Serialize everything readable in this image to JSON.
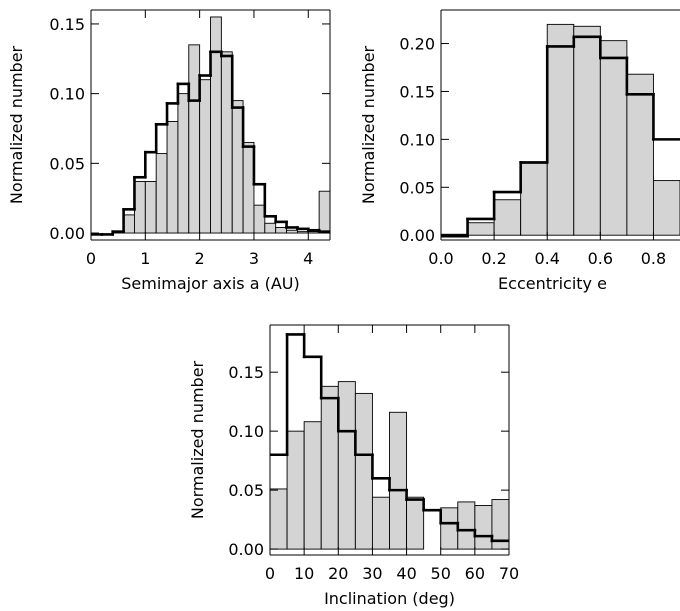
{
  "colors": {
    "fill": "#d4d4d4",
    "line": "#000000",
    "background": "#ffffff"
  },
  "chart_data": [
    {
      "type": "histogram",
      "id": "semimajor",
      "xlabel": "Semimajor axis a (AU)",
      "ylabel": "Normalized number",
      "xlim": [
        0,
        4.4
      ],
      "ylim": [
        -0.005,
        0.16
      ],
      "xticks": [
        0,
        1,
        2,
        3,
        4
      ],
      "xtick_labels": [
        "0",
        "1",
        "2",
        "3",
        "4"
      ],
      "yticks": [
        0.0,
        0.05,
        0.1,
        0.15
      ],
      "ytick_labels": [
        "0.00",
        "0.05",
        "0.10",
        "0.15"
      ],
      "bin_edges": [
        0.0,
        0.2,
        0.4,
        0.6,
        0.8,
        1.0,
        1.2,
        1.4,
        1.6,
        1.8,
        2.0,
        2.2,
        2.4,
        2.6,
        2.8,
        3.0,
        3.2,
        3.4,
        3.6,
        3.8,
        4.0,
        4.2,
        4.4
      ],
      "series": [
        {
          "style": "filled",
          "values": [
            0.0,
            0.0,
            0.001,
            0.013,
            0.037,
            0.037,
            0.057,
            0.08,
            0.1,
            0.135,
            0.11,
            0.155,
            0.13,
            0.095,
            0.065,
            0.02,
            0.007,
            0.004,
            0.002,
            0.001,
            0.001,
            0.03
          ]
        },
        {
          "style": "thick-line",
          "values": [
            -0.001,
            -0.001,
            0.001,
            0.017,
            0.04,
            0.058,
            0.078,
            0.093,
            0.107,
            0.095,
            0.113,
            0.13,
            0.127,
            0.09,
            0.062,
            0.035,
            0.012,
            0.008,
            0.004,
            0.003,
            0.002,
            0.001
          ]
        }
      ]
    },
    {
      "type": "histogram",
      "id": "eccentricity",
      "xlabel": "Eccentricity e",
      "ylabel": "Normalized number",
      "xlim": [
        0,
        0.9
      ],
      "ylim": [
        -0.005,
        0.235
      ],
      "xticks": [
        0,
        0.2,
        0.4,
        0.6,
        0.8
      ],
      "xtick_labels": [
        "0.0",
        "0.2",
        "0.4",
        "0.6",
        "0.8"
      ],
      "yticks": [
        0.0,
        0.05,
        0.1,
        0.15,
        0.2
      ],
      "ytick_labels": [
        "0.00",
        "0.05",
        "0.10",
        "0.15",
        "0.20"
      ],
      "bin_edges": [
        0.0,
        0.1,
        0.2,
        0.3,
        0.4,
        0.5,
        0.6,
        0.7,
        0.8,
        0.9
      ],
      "series": [
        {
          "style": "filled",
          "values": [
            0.001,
            0.013,
            0.037,
            0.075,
            0.22,
            0.218,
            0.203,
            0.168,
            0.057
          ]
        },
        {
          "style": "thick-line",
          "values": [
            -0.001,
            0.017,
            0.045,
            0.076,
            0.197,
            0.207,
            0.185,
            0.147,
            0.1
          ]
        }
      ]
    },
    {
      "type": "histogram",
      "id": "inclination",
      "xlabel": "Inclination (deg)",
      "ylabel": "Normalized number",
      "xlim": [
        0,
        70
      ],
      "ylim": [
        -0.005,
        0.19
      ],
      "xticks": [
        0,
        10,
        20,
        30,
        40,
        50,
        60,
        70
      ],
      "xtick_labels": [
        "0",
        "10",
        "20",
        "30",
        "40",
        "50",
        "60",
        "70"
      ],
      "yticks": [
        0.0,
        0.05,
        0.1,
        0.15
      ],
      "ytick_labels": [
        "0.00",
        "0.05",
        "0.10",
        "0.15"
      ],
      "bin_edges": [
        0,
        5,
        10,
        15,
        20,
        25,
        30,
        35,
        40,
        45,
        50,
        55,
        60,
        65,
        70
      ],
      "series": [
        {
          "style": "filled",
          "values": [
            0.051,
            0.1,
            0.108,
            0.138,
            0.142,
            0.132,
            0.044,
            0.116,
            0.044,
            0.0,
            0.035,
            0.04,
            0.037,
            0.042
          ]
        },
        {
          "style": "thick-line",
          "values": [
            0.08,
            0.182,
            0.163,
            0.128,
            0.1,
            0.08,
            0.06,
            0.05,
            0.042,
            0.033,
            0.022,
            0.016,
            0.011,
            0.007
          ]
        }
      ]
    }
  ]
}
